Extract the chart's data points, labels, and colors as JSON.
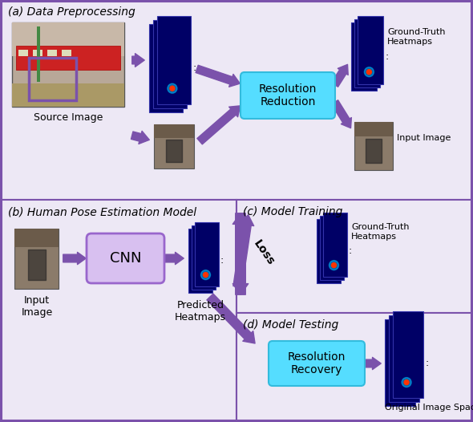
{
  "fig_width": 5.9,
  "fig_height": 5.26,
  "dpi": 100,
  "outer_border_color": "#7B52AB",
  "panel_bg": "#EDE8F5",
  "divider_color": "#7B52AB",
  "title_a": "(a) Data Preprocessing",
  "title_b": "(b) Human Pose Estimation Model",
  "title_c": "(c) Model Training",
  "title_d": "(d) Model Testing",
  "label_source": "Source Image",
  "label_input_a": "Input Image",
  "label_gt_heatmaps_a": "Ground-Truth\nHeatmaps",
  "label_gt_heatmaps_c": "Ground-Truth\nHeatmaps",
  "label_predicted": "Predicted\nHeatmaps",
  "label_original": "Original Image Space",
  "label_input_b": "Input\nImage",
  "label_cnn": "CNN",
  "label_res_red": "Resolution\nReduction",
  "label_res_rec": "Resolution\nRecovery",
  "label_loss": "Loss",
  "arrow_color": "#7B52AB",
  "cyan_box_color": "#55DDFF",
  "cyan_border_color": "#33BBDD",
  "cnn_box_color": "#D8C0F0",
  "cnn_border_color": "#9966CC",
  "heatmap_dark": "#000055",
  "title_fontsize": 10,
  "label_fontsize": 9,
  "small_label_fontsize": 8
}
